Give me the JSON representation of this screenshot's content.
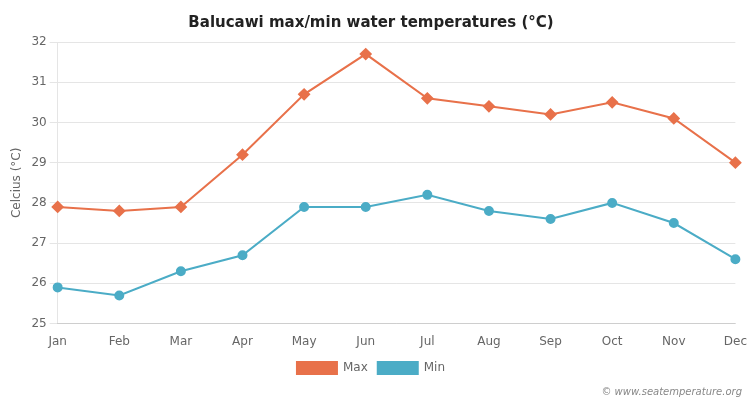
{
  "chart_data": {
    "type": "line",
    "title": "Balucawi max/min water temperatures (°C)",
    "ylabel": "Celcius (°C)",
    "categories": [
      "Jan",
      "Feb",
      "Mar",
      "Apr",
      "May",
      "Jun",
      "Jul",
      "Aug",
      "Sep",
      "Oct",
      "Nov",
      "Dec"
    ],
    "series": [
      {
        "name": "Max",
        "color": "#e8714a",
        "marker": "diamond",
        "values": [
          27.9,
          27.8,
          27.9,
          29.2,
          30.7,
          31.7,
          30.6,
          30.4,
          30.2,
          30.5,
          30.1,
          29.0
        ]
      },
      {
        "name": "Min",
        "color": "#4bacc6",
        "marker": "circle",
        "values": [
          25.9,
          25.7,
          26.3,
          26.7,
          27.9,
          27.9,
          28.2,
          27.8,
          27.6,
          28.0,
          27.5,
          26.6
        ]
      }
    ],
    "ylim": [
      25,
      32
    ],
    "yticks": [
      25,
      26,
      27,
      28,
      29,
      30,
      31,
      32
    ],
    "grid": true,
    "legend": "bottom",
    "annotations": [
      "© www.seatemperature.org"
    ]
  }
}
